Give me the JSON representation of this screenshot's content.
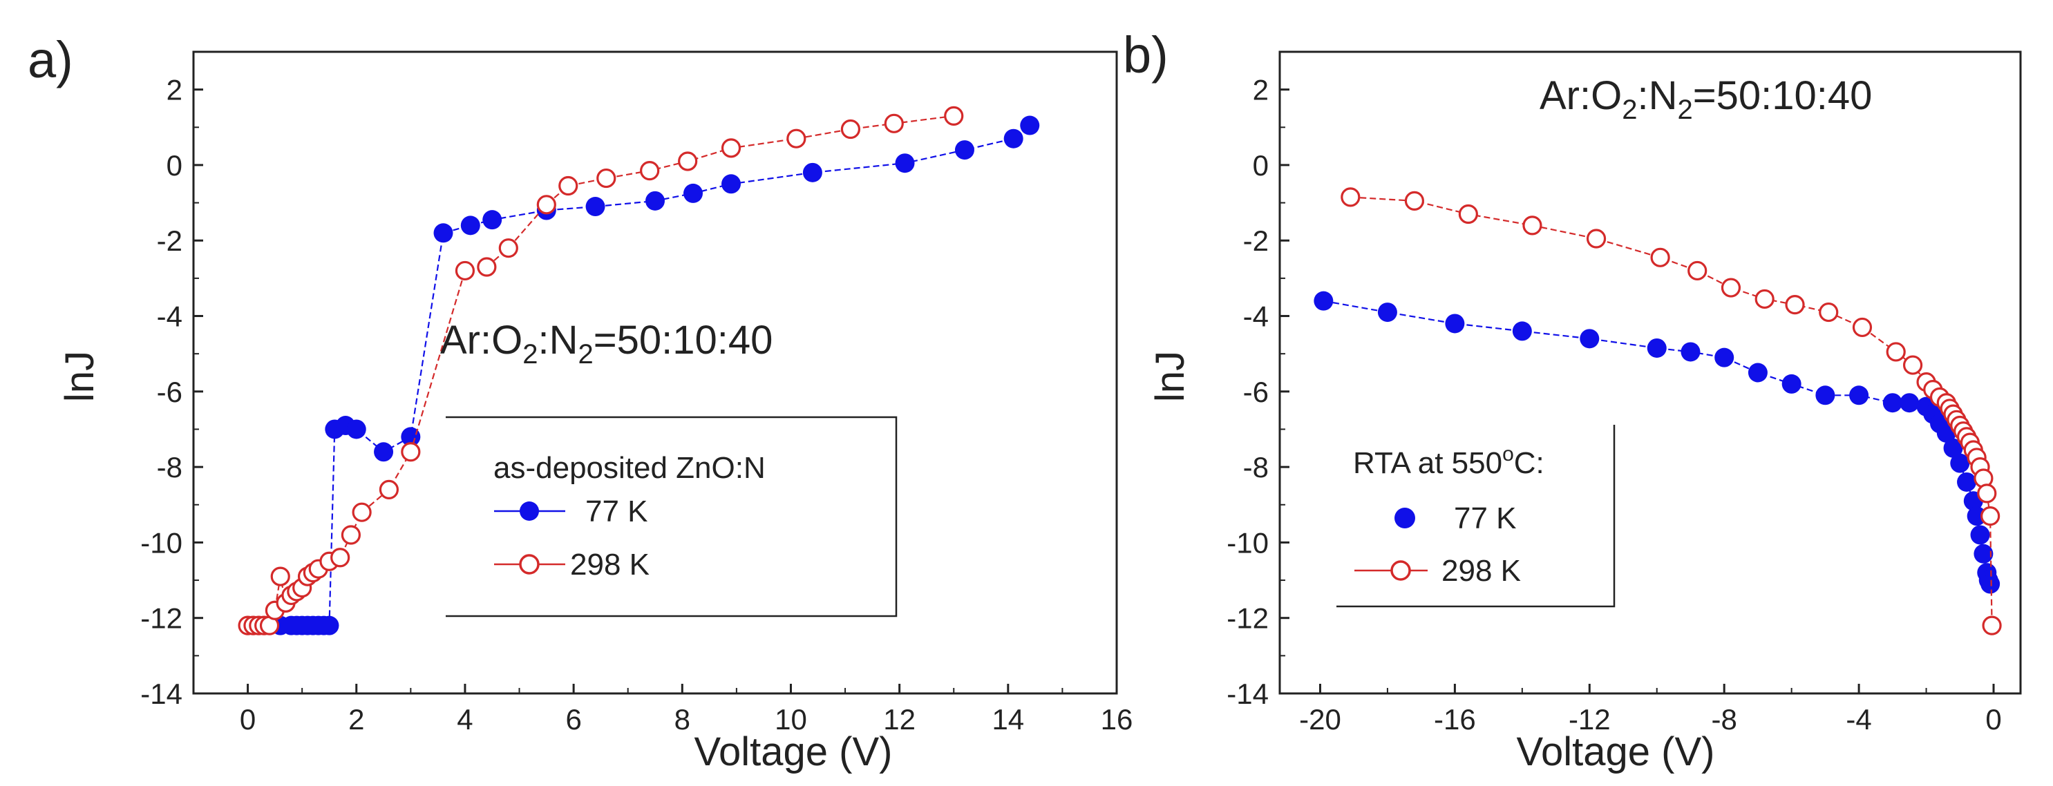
{
  "colors": {
    "series_77K": "#1010e8",
    "series_298K": "#d42a2a",
    "axis": "#222222"
  },
  "chart_data": [
    {
      "panel_label": "a)",
      "type": "scatter",
      "title": "",
      "xlabel": "Voltage (V)",
      "ylabel": "lnJ",
      "xlim": [
        -1,
        16
      ],
      "ylim": [
        -14,
        3
      ],
      "xticks": [
        0,
        2,
        4,
        6,
        8,
        10,
        12,
        14,
        16
      ],
      "yticks": [
        -14,
        -12,
        -10,
        -8,
        -6,
        -4,
        -2,
        0,
        2
      ],
      "grid": false,
      "annotation": {
        "text_main": "Ar:O",
        "sub1": "2",
        "text_mid": ":N",
        "sub2": "2",
        "text_end": "=50:10:40"
      },
      "legend": {
        "title": "as-deposited ZnO:N",
        "placement": "bottom-right",
        "entries": [
          "77 K",
          "298 K"
        ]
      },
      "series": [
        {
          "name": "77 K",
          "marker": "filled-circle",
          "line": "dashed",
          "color": "#1010e8",
          "x": [
            0.6,
            0.8,
            0.9,
            1.0,
            1.1,
            1.2,
            1.3,
            1.4,
            1.5,
            1.6,
            1.8,
            2.0,
            2.5,
            3.0,
            3.6,
            4.1,
            4.5,
            5.5,
            6.4,
            7.5,
            8.2,
            8.9,
            10.4,
            12.1,
            13.2,
            14.1,
            14.4
          ],
          "y": [
            -12.2,
            -12.2,
            -12.2,
            -12.2,
            -12.2,
            -12.2,
            -12.2,
            -12.2,
            -12.2,
            -7.0,
            -6.9,
            -7.0,
            -7.6,
            -7.2,
            -1.8,
            -1.6,
            -1.45,
            -1.2,
            -1.1,
            -0.95,
            -0.75,
            -0.5,
            -0.2,
            0.05,
            0.4,
            0.7,
            1.05
          ]
        },
        {
          "name": "298 K",
          "marker": "open-circle",
          "line": "dashed",
          "color": "#d42a2a",
          "x": [
            0.0,
            0.1,
            0.2,
            0.3,
            0.4,
            0.5,
            0.6,
            0.7,
            0.8,
            0.9,
            1.0,
            1.1,
            1.2,
            1.3,
            1.5,
            1.7,
            1.9,
            2.1,
            2.6,
            3.0,
            4.0,
            4.4,
            4.8,
            5.5,
            5.9,
            6.6,
            7.4,
            8.1,
            8.9,
            10.1,
            11.1,
            11.9,
            13.0
          ],
          "y": [
            -12.2,
            -12.2,
            -12.2,
            -12.2,
            -12.2,
            -11.8,
            -10.9,
            -11.6,
            -11.4,
            -11.3,
            -11.2,
            -10.9,
            -10.8,
            -10.7,
            -10.5,
            -10.4,
            -9.8,
            -9.2,
            -8.6,
            -7.6,
            -2.8,
            -2.7,
            -2.2,
            -1.05,
            -0.55,
            -0.35,
            -0.15,
            0.1,
            0.45,
            0.7,
            0.95,
            1.1,
            1.3
          ]
        }
      ]
    },
    {
      "panel_label": "b)",
      "type": "scatter",
      "title": "",
      "xlabel": "Voltage (V)",
      "ylabel": "lnJ",
      "xlim": [
        -21.2,
        0.8
      ],
      "ylim": [
        -14,
        3
      ],
      "xticks": [
        -20,
        -16,
        -12,
        -8,
        -4,
        0
      ],
      "yticks": [
        -14,
        -12,
        -10,
        -8,
        -6,
        -4,
        -2,
        0,
        2
      ],
      "grid": false,
      "annotation": {
        "text_main": "Ar:O",
        "sub1": "2",
        "text_mid": ":N",
        "sub2": "2",
        "text_end": "=50:10:40"
      },
      "legend": {
        "title_pre": "RTA at 550",
        "title_sup": "o",
        "title_post": "C:",
        "placement": "bottom-left",
        "entries": [
          "77 K",
          "298 K"
        ]
      },
      "series": [
        {
          "name": "77 K",
          "marker": "filled-circle",
          "line": "dashed",
          "color": "#1010e8",
          "x": [
            -19.9,
            -18.0,
            -16.0,
            -14.0,
            -12.0,
            -10.0,
            -9.0,
            -8.0,
            -7.0,
            -6.0,
            -5.0,
            -4.0,
            -3.0,
            -2.5,
            -2.0,
            -1.8,
            -1.6,
            -1.4,
            -1.2,
            -1.0,
            -0.8,
            -0.6,
            -0.5,
            -0.4,
            -0.3,
            -0.2,
            -0.15,
            -0.1
          ],
          "y": [
            -3.6,
            -3.9,
            -4.2,
            -4.4,
            -4.6,
            -4.85,
            -4.95,
            -5.1,
            -5.5,
            -5.8,
            -6.1,
            -6.1,
            -6.3,
            -6.3,
            -6.4,
            -6.6,
            -6.85,
            -7.1,
            -7.5,
            -7.9,
            -8.4,
            -8.9,
            -9.3,
            -9.8,
            -10.3,
            -10.8,
            -11.0,
            -11.1
          ]
        },
        {
          "name": "298 K",
          "marker": "open-circle",
          "line": "dashed",
          "color": "#d42a2a",
          "x": [
            -19.1,
            -17.2,
            -15.6,
            -13.7,
            -11.8,
            -9.9,
            -8.8,
            -7.8,
            -6.8,
            -5.9,
            -4.9,
            -3.9,
            -2.9,
            -2.4,
            -2.0,
            -1.8,
            -1.6,
            -1.4,
            -1.3,
            -1.2,
            -1.1,
            -1.0,
            -0.9,
            -0.8,
            -0.7,
            -0.6,
            -0.5,
            -0.4,
            -0.3,
            -0.2,
            -0.1,
            -0.05
          ],
          "y": [
            -0.85,
            -0.95,
            -1.3,
            -1.6,
            -1.95,
            -2.45,
            -2.8,
            -3.25,
            -3.55,
            -3.7,
            -3.9,
            -4.3,
            -4.95,
            -5.3,
            -5.75,
            -5.95,
            -6.15,
            -6.3,
            -6.45,
            -6.6,
            -6.75,
            -6.9,
            -7.05,
            -7.2,
            -7.35,
            -7.55,
            -7.75,
            -8.0,
            -8.3,
            -8.7,
            -9.3,
            -12.2
          ]
        }
      ]
    }
  ]
}
